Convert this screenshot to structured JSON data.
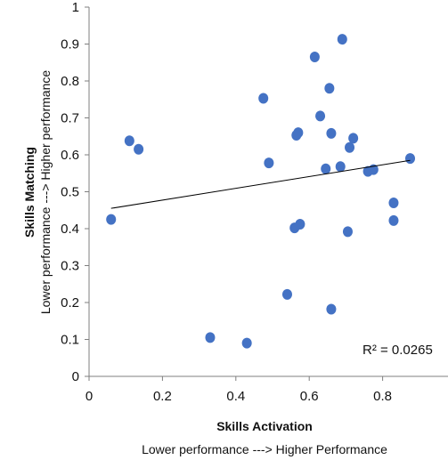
{
  "chart_data": {
    "type": "scatter",
    "title": "",
    "xlabel": "Skills Activation",
    "xlabel_sub": "Lower performance ---> Higher Performance",
    "ylabel": "Skills Matching",
    "ylabel_sub": "Lower performance ---> Higher performance",
    "xlim": [
      0,
      1
    ],
    "ylim": [
      0,
      1
    ],
    "x_ticks": [
      "0",
      "0.2",
      "0.4",
      "0.6",
      "0.8"
    ],
    "y_ticks": [
      "0",
      "0.1",
      "0.2",
      "0.3",
      "0.4",
      "0.5",
      "0.6",
      "0.7",
      "0.8",
      "0.9",
      "1"
    ],
    "grid": false,
    "legend": "none",
    "marker_color": "#4472C4",
    "trendline_color": "#000000",
    "r_squared_label": "R² = 0.0265",
    "trendline": {
      "x": [
        0.06,
        0.875
      ],
      "y": [
        0.455,
        0.585
      ]
    },
    "points": [
      {
        "x": 0.06,
        "y": 0.425
      },
      {
        "x": 0.11,
        "y": 0.638
      },
      {
        "x": 0.135,
        "y": 0.615
      },
      {
        "x": 0.33,
        "y": 0.105
      },
      {
        "x": 0.43,
        "y": 0.09
      },
      {
        "x": 0.475,
        "y": 0.753
      },
      {
        "x": 0.49,
        "y": 0.578
      },
      {
        "x": 0.54,
        "y": 0.222
      },
      {
        "x": 0.56,
        "y": 0.402
      },
      {
        "x": 0.565,
        "y": 0.653
      },
      {
        "x": 0.57,
        "y": 0.66
      },
      {
        "x": 0.575,
        "y": 0.412
      },
      {
        "x": 0.615,
        "y": 0.865
      },
      {
        "x": 0.63,
        "y": 0.705
      },
      {
        "x": 0.645,
        "y": 0.562
      },
      {
        "x": 0.655,
        "y": 0.78
      },
      {
        "x": 0.66,
        "y": 0.658
      },
      {
        "x": 0.66,
        "y": 0.182
      },
      {
        "x": 0.685,
        "y": 0.568
      },
      {
        "x": 0.69,
        "y": 0.913
      },
      {
        "x": 0.705,
        "y": 0.392
      },
      {
        "x": 0.71,
        "y": 0.62
      },
      {
        "x": 0.72,
        "y": 0.645
      },
      {
        "x": 0.76,
        "y": 0.555
      },
      {
        "x": 0.775,
        "y": 0.56
      },
      {
        "x": 0.83,
        "y": 0.47
      },
      {
        "x": 0.83,
        "y": 0.422
      },
      {
        "x": 0.875,
        "y": 0.59
      }
    ]
  }
}
